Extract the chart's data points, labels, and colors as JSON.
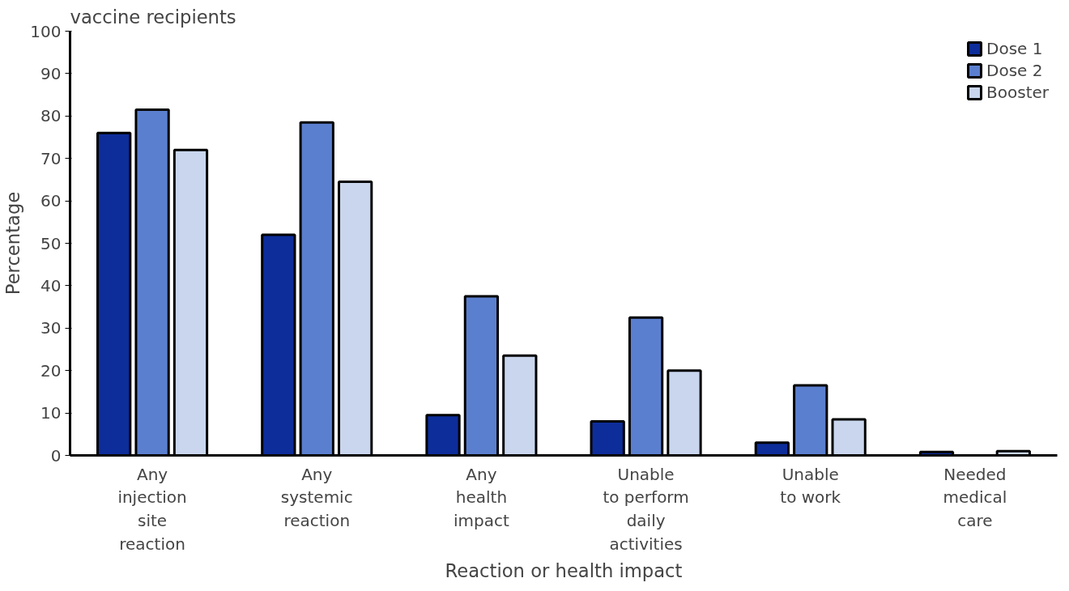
{
  "chart_data": {
    "type": "bar",
    "title": "vaccine recipients",
    "xlabel": "Reaction or health impact",
    "ylabel": "Percentage",
    "categories": [
      "Any\ninjection\nsite\nreaction",
      "Any\nsystemic\nreaction",
      "Any\nhealth\nimpact",
      "Unable\nto perform\ndaily\nactivities",
      "Unable\nto work",
      "Needed\nmedical\ncare"
    ],
    "series": [
      {
        "name": "Dose 1",
        "color": "#0d2d9a",
        "values": [
          76,
          52,
          9.5,
          8,
          3,
          0.8
        ]
      },
      {
        "name": "Dose 2",
        "color": "#5b7fcf",
        "values": [
          81.5,
          78.5,
          37.5,
          32.5,
          16.5,
          null
        ]
      },
      {
        "name": "Booster",
        "color": "#c9d6ee",
        "values": [
          72,
          64.5,
          23.5,
          20,
          8.5,
          1
        ]
      }
    ],
    "ylim": [
      0,
      100
    ],
    "yticks": [
      0,
      10,
      20,
      30,
      40,
      50,
      60,
      70,
      80,
      90,
      100
    ],
    "grid": false,
    "legend": "top right"
  }
}
